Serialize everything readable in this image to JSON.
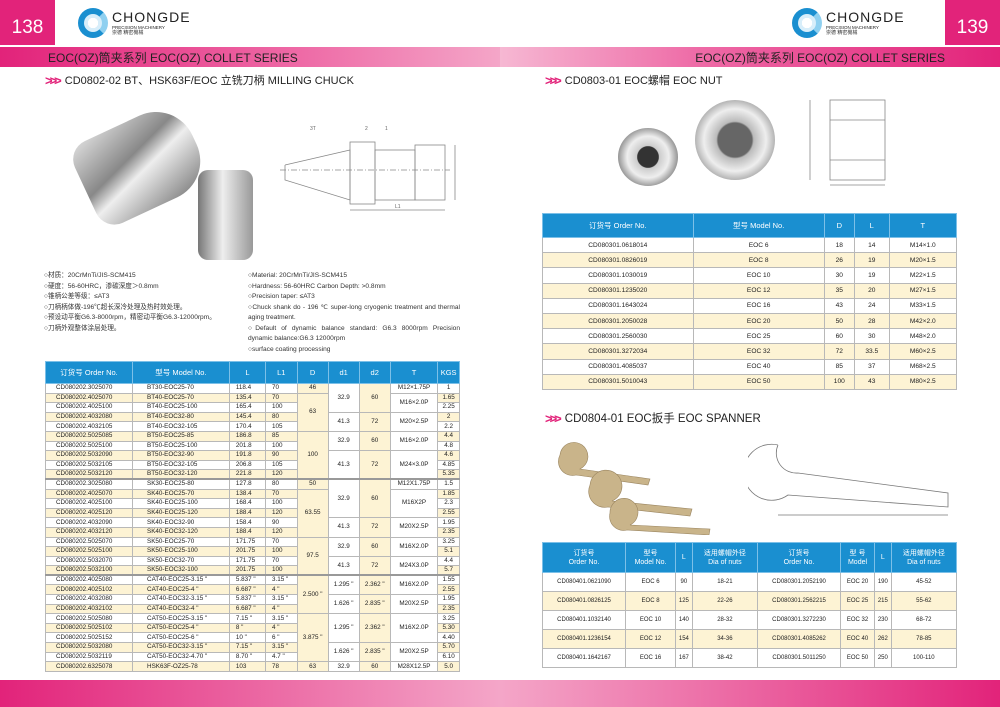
{
  "left": {
    "page_number": "138",
    "logo": {
      "name": "CHONGDE",
      "sub": "PRECISION MACHINERY",
      "cn": "崇德 精密機械"
    },
    "band": "EOC(OZ)筒夹系列  EOC(OZ) COLLET SERIES",
    "subtitle": "CD0802-02  BT、HSK63F/EOC 立铣刀柄  MILLING CHUCK",
    "drawing_labels": [
      "3T",
      "2",
      "1",
      "L",
      "L1",
      "D",
      "d"
    ],
    "specs_cn": [
      "○材质：20CrMnTi/JIS-SCM415",
      "○硬度：56-60HRC，渗碳深度＞0.8mm",
      "○锥柄公差等级：≤AT3",
      "○刀柄柄体做-196℃超长深冷处理及热时效处理。",
      "○预设动平衡G6.3-8000rpm，精密动平衡G6.3-12000rpm。",
      "○刀柄外观整体涂层处理。"
    ],
    "specs_en": [
      "○Material: 20CrMnTi/JIS-SCM415",
      "○Hardness: 56-60HRC Carbon Depth: >0.8mm",
      "○Precision taper: ≤AT3",
      "○Chuck shank do - 196 ℃ super-long cryogenic treatment and thermal aging treatment.",
      "○Default of dynamic balance standard: G6.3 8000rpm  Precision dynamic balance:G6.3 12000rpm",
      "○surface coating processing"
    ],
    "table": {
      "headers": [
        "订货号 Order No.",
        "型号 Model No.",
        "L",
        "L1",
        "D",
        "d1",
        "d2",
        "T",
        "KGS"
      ],
      "sections": [
        {
          "rows": [
            [
              "CD080202.3025070",
              "BT30-EOC25-70",
              "118.4",
              "70",
              "1"
            ],
            [
              "CD080202.4025070",
              "BT40-EOC25-70",
              "135.4",
              "70",
              "1.65"
            ],
            [
              "CD080202.4025100",
              "BT40-EOC25-100",
              "165.4",
              "100",
              "2.25"
            ],
            [
              "CD080202.4032080",
              "BT40-EOC32-80",
              "145.4",
              "80",
              "2"
            ],
            [
              "CD080202.4032105",
              "BT40-EOC32-105",
              "170.4",
              "105",
              "2.2"
            ],
            [
              "CD080202.5025085",
              "BT50-EOC25-85",
              "186.8",
              "85",
              "4.4"
            ],
            [
              "CD080202.5025100",
              "BT50-EOC25-100",
              "201.8",
              "100",
              "4.8"
            ],
            [
              "CD080202.5032090",
              "BT50-EOC32-90",
              "191.8",
              "90",
              "4.6"
            ],
            [
              "CD080202.5032105",
              "BT50-EOC32-105",
              "206.8",
              "105",
              "4.85"
            ],
            [
              "CD080202.5032120",
              "BT50-EOC32-120",
              "221.8",
              "120",
              "5.35"
            ]
          ],
          "D": [
            [
              "46",
              1
            ],
            [
              "63",
              4
            ],
            [
              "100",
              5
            ]
          ],
          "d": [
            [
              "32.9",
              "60",
              3
            ],
            [
              "41.3",
              "72",
              2
            ],
            [
              "32.9",
              "60",
              2
            ],
            [
              "41.3",
              "72",
              3
            ]
          ],
          "T": [
            [
              "M12×1.75P",
              1
            ],
            [
              "M16×2.0P",
              2
            ],
            [
              "M20×2.5P",
              2
            ],
            [
              "M16×2.0P",
              2
            ],
            [
              "M24×3.0P",
              3
            ]
          ]
        },
        {
          "rows": [
            [
              "CD080202.3025080",
              "SK30-EOC25-80",
              "127.8",
              "80",
              "1.5"
            ],
            [
              "CD080202.4025070",
              "SK40-EOC25-70",
              "138.4",
              "70",
              "1.85"
            ],
            [
              "CD080202.4025100",
              "SK40-EOC25-100",
              "168.4",
              "100",
              "2.3"
            ],
            [
              "CD080202.4025120",
              "SK40-EOC25-120",
              "188.4",
              "120",
              "2.55"
            ],
            [
              "CD080202.4032090",
              "SK40-EOC32-90",
              "158.4",
              "90",
              "1.95"
            ],
            [
              "CD080202.4032120",
              "SK40-EOC32-120",
              "188.4",
              "120",
              "2.35"
            ],
            [
              "CD080202.5025070",
              "SK50-EOC25-70",
              "171.75",
              "70",
              "3.25"
            ],
            [
              "CD080202.5025100",
              "SK50-EOC25-100",
              "201.75",
              "100",
              "5.1"
            ],
            [
              "CD080202.5032070",
              "SK50-EOC32-70",
              "171.75",
              "70",
              "4.4"
            ],
            [
              "CD080202.5032100",
              "SK50-EOC32-100",
              "201.75",
              "100",
              "5.7"
            ]
          ],
          "D": [
            [
              "50",
              1
            ],
            [
              "63.55",
              5
            ],
            [
              "97.5",
              4
            ]
          ],
          "d": [
            [
              "32.9",
              "60",
              4
            ],
            [
              "41.3",
              "72",
              2
            ],
            [
              "32.9",
              "60",
              2
            ],
            [
              "41.3",
              "72",
              2
            ]
          ],
          "T": [
            [
              "M12X1.75P",
              1
            ],
            [
              "M16X2P",
              3
            ],
            [
              "M20X2.5P",
              2
            ],
            [
              "M16X2.0P",
              2
            ],
            [
              "M24X3.0P",
              2
            ]
          ]
        },
        {
          "rows": [
            [
              "CD080202.4025080",
              "CAT40-EOC25-3.15 \"",
              "5.837 \"",
              "3.15 \"",
              "1.55"
            ],
            [
              "CD080202.4025102",
              "CAT40-EOC25-4 \"",
              "6.687 \"",
              "4 \"",
              "2.55"
            ],
            [
              "CD080202.4032080",
              "CAT40-EOC32-3.15 \"",
              "5.837 \"",
              "3.15 \"",
              "1.95"
            ],
            [
              "CD080202.4032102",
              "CAT40-EOC32-4 \"",
              "6.687 \"",
              "4 \"",
              "2.35"
            ],
            [
              "CD080202.5025080",
              "CAT50-EOC25-3.15 \"",
              "7.15 \"",
              "3.15 \"",
              "3.25"
            ],
            [
              "CD080202.5025102",
              "CAT50-EOC25-4 \"",
              "8 \"",
              "4 \"",
              "5.30"
            ],
            [
              "CD080202.5025152",
              "CAT50-EOC25-6 \"",
              "10 \"",
              "6 \"",
              "4.40"
            ],
            [
              "CD080202.5032080",
              "CAT50-EOC32-3.15 \"",
              "7.15 \"",
              "3.15 \"",
              "5.70"
            ],
            [
              "CD080202.5032119",
              "CAT50-EOC32-4.70 \"",
              "8.70 \"",
              "4.7 \"",
              "6.10"
            ],
            [
              "CD080202.6325078",
              "HSK63F-OZ25-78",
              "103",
              "78",
              "5.0"
            ]
          ],
          "D": [
            [
              "2.500 \"",
              4
            ],
            [
              "3.875 \"",
              5
            ],
            [
              "63",
              1
            ]
          ],
          "d": [
            [
              "1.295 \"",
              "2.362 \"",
              2
            ],
            [
              "1.626 \"",
              "2.835 \"",
              2
            ],
            [
              "1.295 \"",
              "2.362 \"",
              3
            ],
            [
              "1.626 \"",
              "2.835 \"",
              2
            ],
            [
              "32.9",
              "60",
              1
            ]
          ],
          "T": [
            [
              "M16X2.0P",
              2
            ],
            [
              "M20X2.5P",
              2
            ],
            [
              "M16X2.0P",
              3
            ],
            [
              "M20X2.5P",
              2
            ],
            [
              "M28X12.5P",
              1
            ]
          ]
        }
      ]
    }
  },
  "right": {
    "page_number": "139",
    "logo": {
      "name": "CHONGDE",
      "sub": "PRECISION MACHINERY",
      "cn": "崇德 精密機械"
    },
    "band": "EOC(OZ)筒夹系列  EOC(OZ) COLLET SERIES",
    "subtitle_nut": "CD0803-01 EOC螺帽 EOC  NUT",
    "subtitle_spanner": "CD0804-01 EOC扳手 EOC SPANNER",
    "nut_table": {
      "headers": [
        "订货号 Order No.",
        "型号 Model No.",
        "D",
        "L",
        "T"
      ],
      "rows": [
        [
          "CD080301.0618014",
          "EOC 6",
          "18",
          "14",
          "M14×1.0"
        ],
        [
          "CD080301.0826019",
          "EOC 8",
          "26",
          "19",
          "M20×1.5"
        ],
        [
          "CD080301.1030019",
          "EOC 10",
          "30",
          "19",
          "M22×1.5"
        ],
        [
          "CD080301.1235020",
          "EOC 12",
          "35",
          "20",
          "M27×1.5"
        ],
        [
          "CD080301.1643024",
          "EOC 16",
          "43",
          "24",
          "M33×1.5"
        ],
        [
          "CD080301.2050028",
          "EOC 20",
          "50",
          "28",
          "M42×2.0"
        ],
        [
          "CD080301.2560030",
          "EOC 25",
          "60",
          "30",
          "M48×2.0"
        ],
        [
          "CD080301.3272034",
          "EOC 32",
          "72",
          "33.5",
          "M60×2.5"
        ],
        [
          "CD080301.4085037",
          "EOC 40",
          "85",
          "37",
          "M68×2.5"
        ],
        [
          "CD080301.5010043",
          "EOC 50",
          "100",
          "43",
          "M80×2.5"
        ]
      ]
    },
    "spanner_table": {
      "headers": [
        [
          "订货号",
          "Order No."
        ],
        [
          "型号",
          "Model No."
        ],
        [
          "L",
          ""
        ],
        [
          "适用螺帽外径",
          "Dia of nuts"
        ],
        [
          "订货号",
          "Order No."
        ],
        [
          "型 号",
          "Model"
        ],
        [
          "L",
          ""
        ],
        [
          "适用螺帽外径",
          "Dia of nuts"
        ]
      ],
      "rows": [
        [
          "CD080401.0621090",
          "EOC 6",
          "90",
          "18-21",
          "CD080301.2052190",
          "EOC 20",
          "190",
          "45-52"
        ],
        [
          "CD080401.0826125",
          "EOC 8",
          "125",
          "22-26",
          "CD080301.2562215",
          "EOC 25",
          "215",
          "55-62"
        ],
        [
          "CD080401.1032140",
          "EOC 10",
          "140",
          "28-32",
          "CD080301.3272230",
          "EOC 32",
          "230",
          "68-72"
        ],
        [
          "CD080401.1236154",
          "EOC 12",
          "154",
          "34-36",
          "CD080301.4085262",
          "EOC 40",
          "262",
          "78-85"
        ],
        [
          "CD080401.1642167",
          "EOC 16",
          "167",
          "38-42",
          "CD080301.5011250",
          "EOC 50",
          "250",
          "100-110"
        ]
      ]
    }
  },
  "colors": {
    "accent": "#e2237a",
    "header_blue": "#1a8fd0",
    "row_alt": "#fdf3d4"
  }
}
